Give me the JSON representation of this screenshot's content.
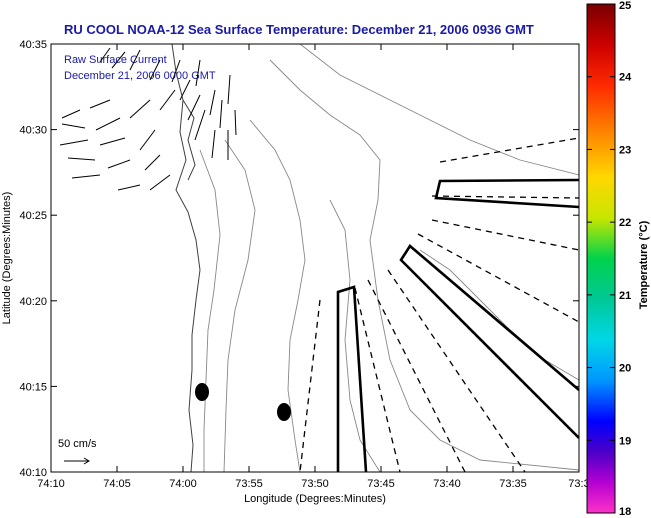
{
  "chart_data": {
    "type": "map",
    "title": "RU COOL  NOAA-12  Sea Surface Temperature:  December 21, 2006 0936 GMT",
    "subtitle_lines": [
      "Raw Surface Current",
      "December 21, 2006 0000 GMT"
    ],
    "xlabel": "Longitude (Degrees:Minutes)",
    "ylabel": "Latitude (Degrees:Minutes)",
    "x_ticks": [
      "74:10",
      "74:05",
      "74:00",
      "73:55",
      "73:50",
      "73:45",
      "73:40",
      "73:35",
      "73:3"
    ],
    "y_ticks": [
      "40:35",
      "40:30",
      "40:25",
      "40:20",
      "40:15",
      "40:10"
    ],
    "colorbar": {
      "label": "Temperature (°C)",
      "ticks": [
        "25",
        "24",
        "23",
        "22",
        "21",
        "20",
        "19",
        "18"
      ],
      "range": [
        18,
        25
      ]
    },
    "scale_arrow_label": "50 cm/s",
    "grid": false,
    "markers": [
      {
        "lon": "73:59",
        "lat": "40:14.6"
      },
      {
        "lon": "73:52.5",
        "lat": "40:13.5"
      }
    ]
  }
}
